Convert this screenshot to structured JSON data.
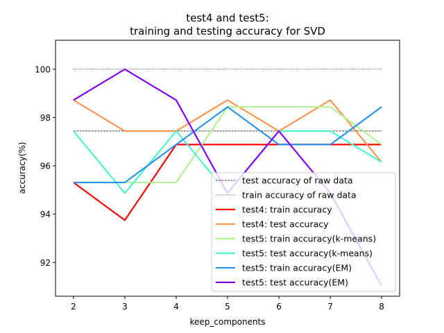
{
  "chart_data": {
    "type": "line",
    "title": "test4 and test5:",
    "subtitle": "training and testing accuracy for SVD",
    "xlabel": "keep_components",
    "ylabel": "accuracy(%)",
    "x": [
      2,
      3,
      4,
      5,
      6,
      7,
      8
    ],
    "xlim": [
      1.65,
      8.35
    ],
    "ylim": [
      90.6,
      101.2
    ],
    "xticks": [
      2,
      3,
      4,
      5,
      6,
      7,
      8
    ],
    "yticks": [
      92,
      94,
      96,
      98,
      100
    ],
    "grid": false,
    "legend_position": "lower-right",
    "series": [
      {
        "name": "test accuracy of raw data",
        "values": [
          97.44,
          97.44,
          97.44,
          97.44,
          97.44,
          97.44,
          97.44
        ],
        "color": "#000000",
        "style": "dashed"
      },
      {
        "name": "train accuracy of raw data",
        "values": [
          100,
          100,
          100,
          100,
          100,
          100,
          100
        ],
        "color": "#000000",
        "style": "dotted"
      },
      {
        "name": "test4: train accuracy",
        "values": [
          95.31,
          93.75,
          96.88,
          96.88,
          96.88,
          96.88,
          96.88
        ],
        "color": "#ff0000",
        "style": "solid"
      },
      {
        "name": "test4: test accuracy",
        "values": [
          98.72,
          97.44,
          97.44,
          98.72,
          97.44,
          98.72,
          96.15
        ],
        "color": "#ff954f",
        "style": "solid"
      },
      {
        "name": "test5: train accuracy(k-means)",
        "values": [
          95.31,
          95.31,
          95.31,
          98.44,
          98.44,
          98.44,
          96.88
        ],
        "color": "#b2f396",
        "style": "solid"
      },
      {
        "name": "test5: test accuracy(k-means)",
        "values": [
          97.44,
          94.87,
          97.44,
          94.87,
          97.44,
          97.44,
          96.15
        ],
        "color": "#4df3ce",
        "style": "solid"
      },
      {
        "name": "test5: train accuracy(EM)",
        "values": [
          95.31,
          95.31,
          96.88,
          98.44,
          96.88,
          96.88,
          98.44
        ],
        "color": "#2c93ec",
        "style": "solid"
      },
      {
        "name": "test5: test accuracy(EM)",
        "values": [
          98.72,
          100,
          98.72,
          94.87,
          97.44,
          94.87,
          91.03
        ],
        "color": "#8000ff",
        "style": "solid"
      }
    ]
  }
}
